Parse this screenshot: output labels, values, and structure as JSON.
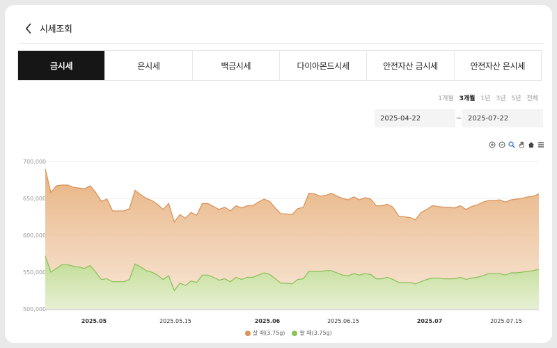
{
  "header": {
    "title": "시세조회"
  },
  "tabs": [
    {
      "label": "금시세",
      "active": true
    },
    {
      "label": "은시세",
      "active": false
    },
    {
      "label": "백금시세",
      "active": false
    },
    {
      "label": "다이아몬드시세",
      "active": false
    },
    {
      "label": "안전자산 금시세",
      "active": false
    },
    {
      "label": "안전자산 은시세",
      "active": false
    }
  ],
  "period": {
    "options": [
      "1개월",
      "3개월",
      "1년",
      "3년",
      "5년",
      "전체"
    ],
    "selected": "3개월"
  },
  "date_range": {
    "start": "2025-04-22",
    "separator": "~",
    "end": "2025-07-22"
  },
  "toolbar": [
    "zoom-in-icon",
    "zoom-out-icon",
    "magnify-icon",
    "pan-hand-icon",
    "home-icon",
    "menu-icon"
  ],
  "colors": {
    "buy": "#e0a36a",
    "sell": "#9fce6b",
    "active_tab": "#161616"
  },
  "chart_data": {
    "type": "area",
    "x_tick_labels": [
      "2025.05",
      "2025.05.15",
      "2025.06",
      "2025.06.15",
      "2025.07",
      "2025.07.15"
    ],
    "x_tick_bold": [
      true,
      false,
      true,
      false,
      true,
      false
    ],
    "ylim": [
      500000,
      700000
    ],
    "y_ticks": [
      "700,000",
      "650,000",
      "600,000",
      "550,000",
      "500,000"
    ],
    "y_tick_values": [
      700000,
      650000,
      600000,
      550000,
      500000
    ],
    "grid": true,
    "legend_position": "bottom-center",
    "series": [
      {
        "name": "살 때(3.75g)",
        "values": [
          690000,
          658000,
          667000,
          668000,
          668000,
          665000,
          664000,
          663000,
          667000,
          658000,
          646000,
          649000,
          633000,
          633000,
          633000,
          636000,
          661000,
          655000,
          650000,
          647000,
          642000,
          635000,
          643000,
          618000,
          628000,
          623000,
          631000,
          627000,
          643000,
          643000,
          639000,
          635000,
          638000,
          633000,
          640000,
          637000,
          640000,
          640000,
          645000,
          649000,
          646000,
          637000,
          629000,
          629000,
          628000,
          636000,
          638000,
          657000,
          656000,
          653000,
          654000,
          657000,
          653000,
          650000,
          648000,
          652000,
          648000,
          651000,
          649000,
          640000,
          640000,
          642000,
          638000,
          626000,
          625000,
          624000,
          621000,
          631000,
          635000,
          640000,
          639000,
          638000,
          638000,
          637000,
          640000,
          635000,
          639000,
          641000,
          645000,
          647000,
          647000,
          648000,
          645000,
          648000,
          649000,
          650000,
          652000,
          653000,
          656000
        ]
      },
      {
        "name": "팔 때(3.75g)",
        "values": [
          572000,
          550000,
          555000,
          560000,
          560000,
          558000,
          557000,
          555000,
          559000,
          550000,
          540000,
          541000,
          537000,
          537000,
          537000,
          540000,
          561000,
          557000,
          552000,
          550000,
          546000,
          540000,
          545000,
          525000,
          535000,
          532000,
          538000,
          536000,
          546000,
          546000,
          543000,
          539000,
          541000,
          537000,
          543000,
          540000,
          543000,
          543000,
          546000,
          549000,
          547000,
          541000,
          535000,
          535000,
          534000,
          540000,
          541000,
          551000,
          551000,
          551000,
          552000,
          552000,
          549000,
          546000,
          545000,
          548000,
          546000,
          548000,
          547000,
          541000,
          541000,
          543000,
          540000,
          536000,
          536000,
          536000,
          534000,
          537000,
          540000,
          542000,
          542000,
          541000,
          541000,
          541000,
          543000,
          540000,
          542000,
          543000,
          545000,
          548000,
          548000,
          548000,
          546000,
          549000,
          549000,
          550000,
          551000,
          552000,
          554000
        ]
      }
    ]
  }
}
